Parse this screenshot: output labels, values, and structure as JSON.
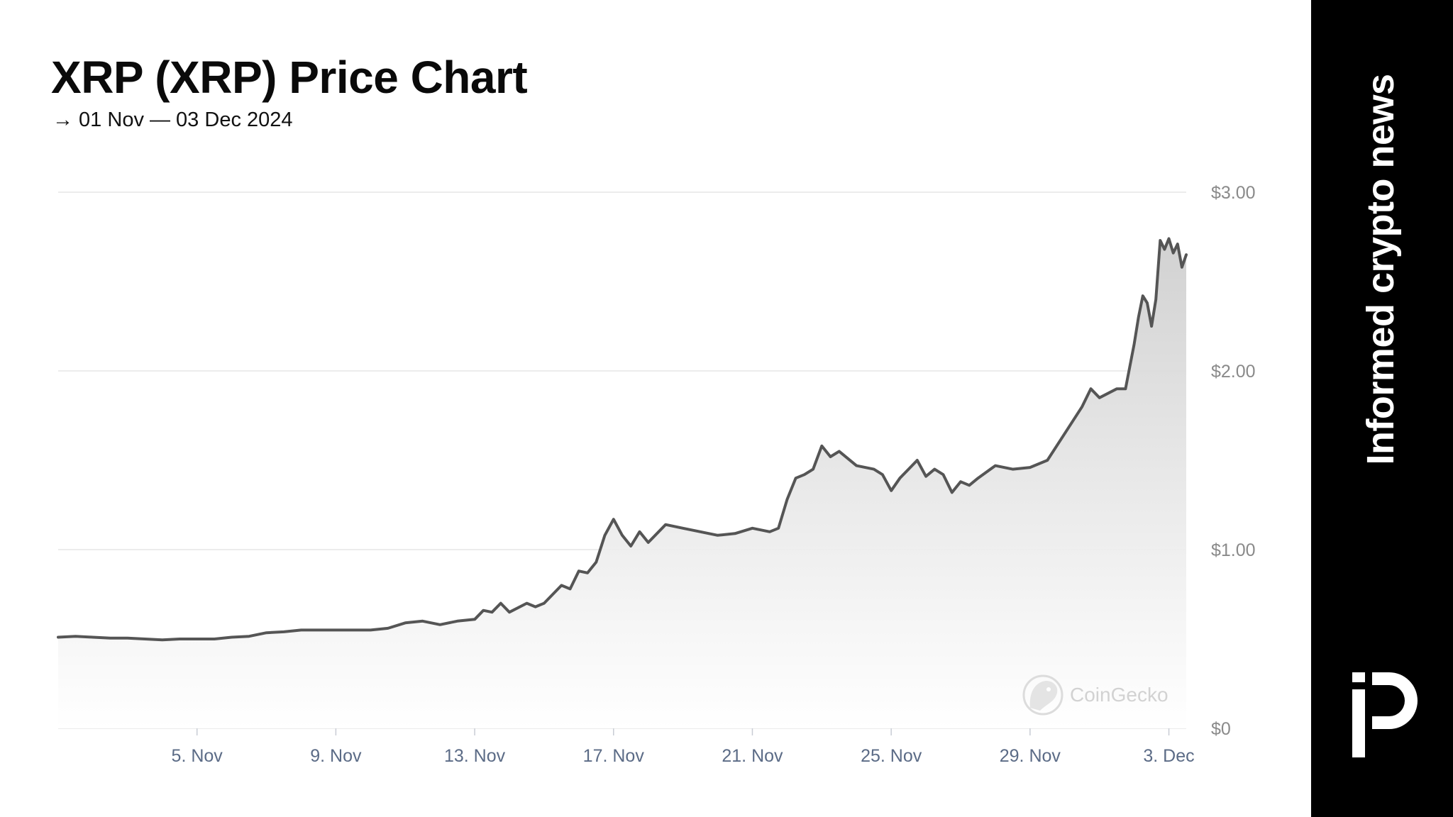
{
  "header": {
    "title": "XRP (XRP) Price Chart",
    "subtitle": "→ 01 Nov — 03 Dec 2024"
  },
  "sidebar": {
    "tagline": "Informed crypto news",
    "logo_icon": "brand-logo-icon",
    "background": "#000000",
    "text_color": "#ffffff"
  },
  "watermark": {
    "text": "CoinGecko",
    "icon": "gecko-icon"
  },
  "chart_data": {
    "type": "area",
    "title": "XRP (XRP) Price Chart",
    "subtitle": "→ 01 Nov — 03 Dec 2024",
    "x_domain": [
      "2024-11-01",
      "2024-12-03T12:00"
    ],
    "y_range": [
      0,
      3
    ],
    "y_ticks": [
      {
        "value": 0,
        "label": "$0"
      },
      {
        "value": 1,
        "label": "$1.00"
      },
      {
        "value": 2,
        "label": "$2.00"
      },
      {
        "value": 3,
        "label": "$3.00"
      }
    ],
    "x_ticks": [
      {
        "date": "2024-11-05",
        "label": "5. Nov"
      },
      {
        "date": "2024-11-09",
        "label": "9. Nov"
      },
      {
        "date": "2024-11-13",
        "label": "13. Nov"
      },
      {
        "date": "2024-11-17",
        "label": "17. Nov"
      },
      {
        "date": "2024-11-21",
        "label": "21. Nov"
      },
      {
        "date": "2024-11-25",
        "label": "25. Nov"
      },
      {
        "date": "2024-11-29",
        "label": "29. Nov"
      },
      {
        "date": "2024-12-03",
        "label": "3. Dec"
      }
    ],
    "grid": true,
    "y_axis_position": "right",
    "line_color": "#555555",
    "fill_color": "#cfcfcf",
    "series": [
      {
        "name": "",
        "points": [
          [
            "2024-11-01T00:00",
            0.51
          ],
          [
            "2024-11-01T12:00",
            0.515
          ],
          [
            "2024-11-02T00:00",
            0.51
          ],
          [
            "2024-11-02T12:00",
            0.505
          ],
          [
            "2024-11-03T00:00",
            0.505
          ],
          [
            "2024-11-03T12:00",
            0.5
          ],
          [
            "2024-11-04T00:00",
            0.495
          ],
          [
            "2024-11-04T12:00",
            0.5
          ],
          [
            "2024-11-05T00:00",
            0.5
          ],
          [
            "2024-11-05T12:00",
            0.5
          ],
          [
            "2024-11-06T00:00",
            0.51
          ],
          [
            "2024-11-06T12:00",
            0.515
          ],
          [
            "2024-11-07T00:00",
            0.535
          ],
          [
            "2024-11-07T12:00",
            0.54
          ],
          [
            "2024-11-08T00:00",
            0.55
          ],
          [
            "2024-11-08T12:00",
            0.55
          ],
          [
            "2024-11-09T00:00",
            0.55
          ],
          [
            "2024-11-09T12:00",
            0.55
          ],
          [
            "2024-11-10T00:00",
            0.55
          ],
          [
            "2024-11-10T12:00",
            0.56
          ],
          [
            "2024-11-11T00:00",
            0.59
          ],
          [
            "2024-11-11T12:00",
            0.6
          ],
          [
            "2024-11-12T00:00",
            0.58
          ],
          [
            "2024-11-12T12:00",
            0.6
          ],
          [
            "2024-11-13T00:00",
            0.61
          ],
          [
            "2024-11-13T06:00",
            0.66
          ],
          [
            "2024-11-13T12:00",
            0.65
          ],
          [
            "2024-11-13T18:00",
            0.7
          ],
          [
            "2024-11-14T00:00",
            0.65
          ],
          [
            "2024-11-14T12:00",
            0.7
          ],
          [
            "2024-11-14T18:00",
            0.68
          ],
          [
            "2024-11-15T00:00",
            0.7
          ],
          [
            "2024-11-15T12:00",
            0.8
          ],
          [
            "2024-11-15T18:00",
            0.78
          ],
          [
            "2024-11-16T00:00",
            0.88
          ],
          [
            "2024-11-16T06:00",
            0.87
          ],
          [
            "2024-11-16T12:00",
            0.93
          ],
          [
            "2024-11-16T18:00",
            1.08
          ],
          [
            "2024-11-17T00:00",
            1.17
          ],
          [
            "2024-11-17T06:00",
            1.08
          ],
          [
            "2024-11-17T12:00",
            1.02
          ],
          [
            "2024-11-17T18:00",
            1.1
          ],
          [
            "2024-11-18T00:00",
            1.04
          ],
          [
            "2024-11-18T12:00",
            1.14
          ],
          [
            "2024-11-19T00:00",
            1.12
          ],
          [
            "2024-11-19T12:00",
            1.1
          ],
          [
            "2024-11-20T00:00",
            1.08
          ],
          [
            "2024-11-20T12:00",
            1.09
          ],
          [
            "2024-11-21T00:00",
            1.12
          ],
          [
            "2024-11-21T12:00",
            1.1
          ],
          [
            "2024-11-21T18:00",
            1.12
          ],
          [
            "2024-11-22T00:00",
            1.28
          ],
          [
            "2024-11-22T06:00",
            1.4
          ],
          [
            "2024-11-22T12:00",
            1.42
          ],
          [
            "2024-11-22T18:00",
            1.45
          ],
          [
            "2024-11-23T00:00",
            1.58
          ],
          [
            "2024-11-23T06:00",
            1.52
          ],
          [
            "2024-11-23T12:00",
            1.55
          ],
          [
            "2024-11-24T00:00",
            1.47
          ],
          [
            "2024-11-24T12:00",
            1.45
          ],
          [
            "2024-11-24T18:00",
            1.42
          ],
          [
            "2024-11-25T00:00",
            1.33
          ],
          [
            "2024-11-25T06:00",
            1.4
          ],
          [
            "2024-11-25T12:00",
            1.45
          ],
          [
            "2024-11-25T18:00",
            1.5
          ],
          [
            "2024-11-26T00:00",
            1.41
          ],
          [
            "2024-11-26T06:00",
            1.45
          ],
          [
            "2024-11-26T12:00",
            1.42
          ],
          [
            "2024-11-26T18:00",
            1.32
          ],
          [
            "2024-11-27T00:00",
            1.38
          ],
          [
            "2024-11-27T06:00",
            1.36
          ],
          [
            "2024-11-27T12:00",
            1.4
          ],
          [
            "2024-11-28T00:00",
            1.47
          ],
          [
            "2024-11-28T12:00",
            1.45
          ],
          [
            "2024-11-29T00:00",
            1.46
          ],
          [
            "2024-11-29T12:00",
            1.5
          ],
          [
            "2024-11-30T00:00",
            1.65
          ],
          [
            "2024-11-30T12:00",
            1.8
          ],
          [
            "2024-11-30T18:00",
            1.9
          ],
          [
            "2024-12-01T00:00",
            1.85
          ],
          [
            "2024-12-01T12:00",
            1.9
          ],
          [
            "2024-12-01T18:00",
            1.9
          ],
          [
            "2024-12-02T00:00",
            2.15
          ],
          [
            "2024-12-02T03:00",
            2.3
          ],
          [
            "2024-12-02T06:00",
            2.42
          ],
          [
            "2024-12-02T09:00",
            2.38
          ],
          [
            "2024-12-02T12:00",
            2.25
          ],
          [
            "2024-12-02T15:00",
            2.4
          ],
          [
            "2024-12-02T18:00",
            2.73
          ],
          [
            "2024-12-02T21:00",
            2.68
          ],
          [
            "2024-12-03T00:00",
            2.74
          ],
          [
            "2024-12-03T03:00",
            2.66
          ],
          [
            "2024-12-03T06:00",
            2.71
          ],
          [
            "2024-12-03T09:00",
            2.58
          ],
          [
            "2024-12-03T12:00",
            2.65
          ]
        ]
      }
    ]
  }
}
